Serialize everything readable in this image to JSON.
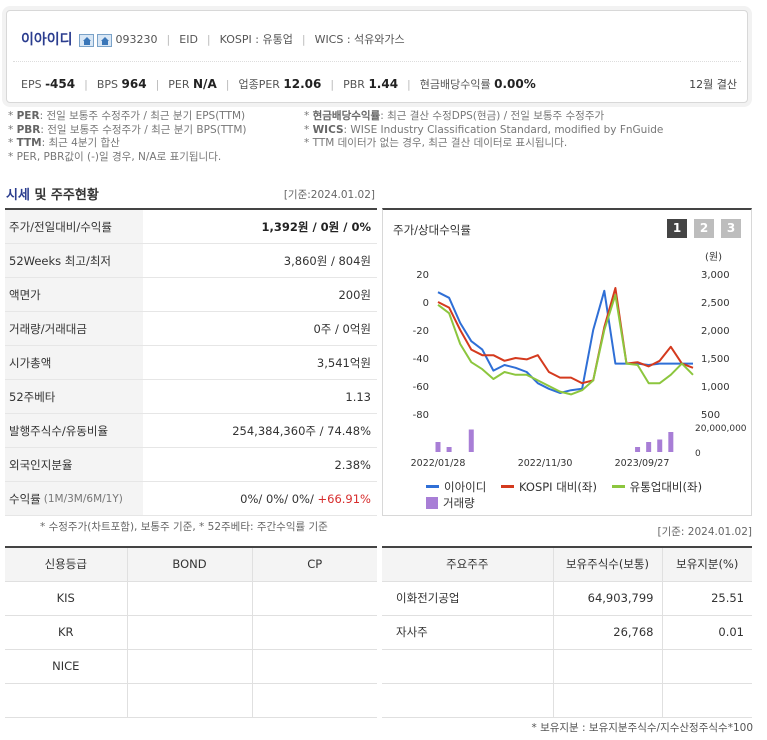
{
  "header": {
    "company": "이아이디",
    "code": "093230",
    "ticker": "EID",
    "market": "KOSPI : 유통업",
    "wics": "WICS : 석유와가스",
    "eps_label": "EPS",
    "eps_value": "-454",
    "bps_label": "BPS",
    "bps_value": "964",
    "per_label": "PER",
    "per_value": "N/A",
    "iper_label": "업종PER",
    "iper_value": "12.06",
    "pbr_label": "PBR",
    "pbr_value": "1.44",
    "div_label": "현금배당수익률",
    "div_value": "0.00%",
    "fiscal": "12월 결산"
  },
  "notes_left": [
    {
      "k": "PER",
      "t": ": 전일 보통주 수정주가 / 최근 분기 EPS(TTM)"
    },
    {
      "k": "PBR",
      "t": ": 전일 보통주 수정주가 / 최근 분기 BPS(TTM)"
    },
    {
      "k": "TTM",
      "t": ": 최근 4분기 합산"
    },
    {
      "k": "",
      "t": "PER, PBR값이 (-)일 경우, N/A로 표기됩니다."
    }
  ],
  "notes_right": [
    {
      "k": "현금배당수익률",
      "t": ": 최근 결산 수정DPS(현금) / 전일 보통주 수정주가"
    },
    {
      "k": "WICS",
      "t": ": WISE Industry Classification Standard, modified by FnGuide"
    },
    {
      "k": "",
      "t": "TTM 데이터가 없는 경우, 최근 결산 데이터로 표시됩니다."
    }
  ],
  "market": {
    "title_a": "시세",
    "title_b": " 및 주주현황",
    "date": "[기준:2024.01.02]",
    "rows": [
      {
        "label": "주가/전일대비/수익률",
        "sub": "",
        "value": "1,392원 / 0원 / 0%"
      },
      {
        "label": "52Weeks 최고/최저",
        "sub": "",
        "value": "3,860원 / 804원"
      },
      {
        "label": "액면가",
        "sub": "",
        "value": "200원"
      },
      {
        "label": "거래량/거래대금",
        "sub": "",
        "value": "0주 / 0억원"
      },
      {
        "label": "시가총액",
        "sub": "",
        "value": "3,541억원"
      },
      {
        "label": "52주베타",
        "sub": "",
        "value": "1.13"
      },
      {
        "label": "발행주식수/유동비율",
        "sub": "",
        "value": "254,384,360주 / 74.48%"
      },
      {
        "label": "외국인지분율",
        "sub": "",
        "value": "2.38%"
      },
      {
        "label": "수익률",
        "sub": "(1M/3M/6M/1Y)",
        "value": "0%/ 0%/ 0%/ ",
        "value_up": "+66.91%"
      }
    ],
    "note": "* 수정주가(차트포함), 보통주 기준, * 52주베타: 주간수익률 기준"
  },
  "chart_panel": {
    "title": "주가/상대수익률",
    "buttons": [
      "1",
      "2",
      "3"
    ],
    "legend": [
      {
        "name": "이아이디",
        "color": "#2f6fd6"
      },
      {
        "name": "KOSPI 대비(좌)",
        "color": "#d43a1e"
      },
      {
        "name": "유통업대비(좌)",
        "color": "#8cc63e"
      },
      {
        "name": "거래량",
        "color": "#a87ed6"
      }
    ]
  },
  "chart_data": {
    "type": "line",
    "unit_right": "(원)",
    "x_ticks": [
      "2022/01/28",
      "2022/11/30",
      "2023/09/27"
    ],
    "left_axis": {
      "range": [
        -80,
        20
      ],
      "ticks": [
        20,
        0,
        -20,
        -40,
        -60,
        -80
      ]
    },
    "right_axis": {
      "range": [
        500,
        3000
      ],
      "ticks": [
        "3,000",
        "2,500",
        "2,000",
        "1,500",
        "1,000",
        "500"
      ]
    },
    "volume_axis": {
      "ticks": [
        "20,000,000",
        "0"
      ]
    },
    "series": [
      {
        "name": "이아이디",
        "color": "#2f6fd6",
        "values": [
          7,
          3,
          -15,
          -28,
          -34,
          -49,
          -45,
          -47,
          -50,
          -58,
          -62,
          -65,
          -63,
          -62,
          -20,
          8,
          -44,
          -44,
          -44,
          -45,
          -44,
          -44,
          -44,
          -44
        ]
      },
      {
        "name": "KOSPI 대비(좌)",
        "color": "#d43a1e",
        "values": [
          0,
          -4,
          -20,
          -34,
          -38,
          -38,
          -42,
          -40,
          -41,
          -38,
          -50,
          -54,
          -54,
          -58,
          -56,
          -18,
          10,
          -44,
          -43,
          -46,
          -42,
          -32,
          -44,
          -47
        ]
      },
      {
        "name": "유통업대비(좌)",
        "color": "#8cc63e",
        "values": [
          -2,
          -8,
          -30,
          -43,
          -48,
          -55,
          -50,
          -52,
          -52,
          -56,
          -60,
          -64,
          -66,
          -63,
          -56,
          -20,
          5,
          -44,
          -45,
          -58,
          -58,
          -52,
          -44,
          -52
        ]
      },
      {
        "name": "거래량",
        "color": "#a87ed6",
        "type": "bar",
        "values": [
          4,
          2,
          0,
          9,
          0,
          0,
          0,
          0,
          0,
          0,
          0,
          0,
          0,
          0,
          0,
          0,
          0,
          0,
          2,
          4,
          5,
          8,
          0,
          0
        ]
      }
    ]
  },
  "rating": {
    "headers": [
      "신용등급",
      "BOND",
      "CP"
    ],
    "rows": [
      [
        "KIS",
        "",
        ""
      ],
      [
        "KR",
        "",
        ""
      ],
      [
        "NICE",
        "",
        ""
      ]
    ]
  },
  "holders": {
    "date": "[기준: 2024.01.02]",
    "headers": [
      "주요주주",
      "보유주식수(보통)",
      "보유지분(%)"
    ],
    "rows": [
      [
        "이화전기공업",
        "64,903,799",
        "25.51"
      ],
      [
        "자사주",
        "26,768",
        "0.01"
      ],
      [
        "",
        "",
        ""
      ],
      [
        "",
        "",
        ""
      ]
    ],
    "note": "* 보유지분 : 보유지분주식수/지수산정주식수*100"
  }
}
